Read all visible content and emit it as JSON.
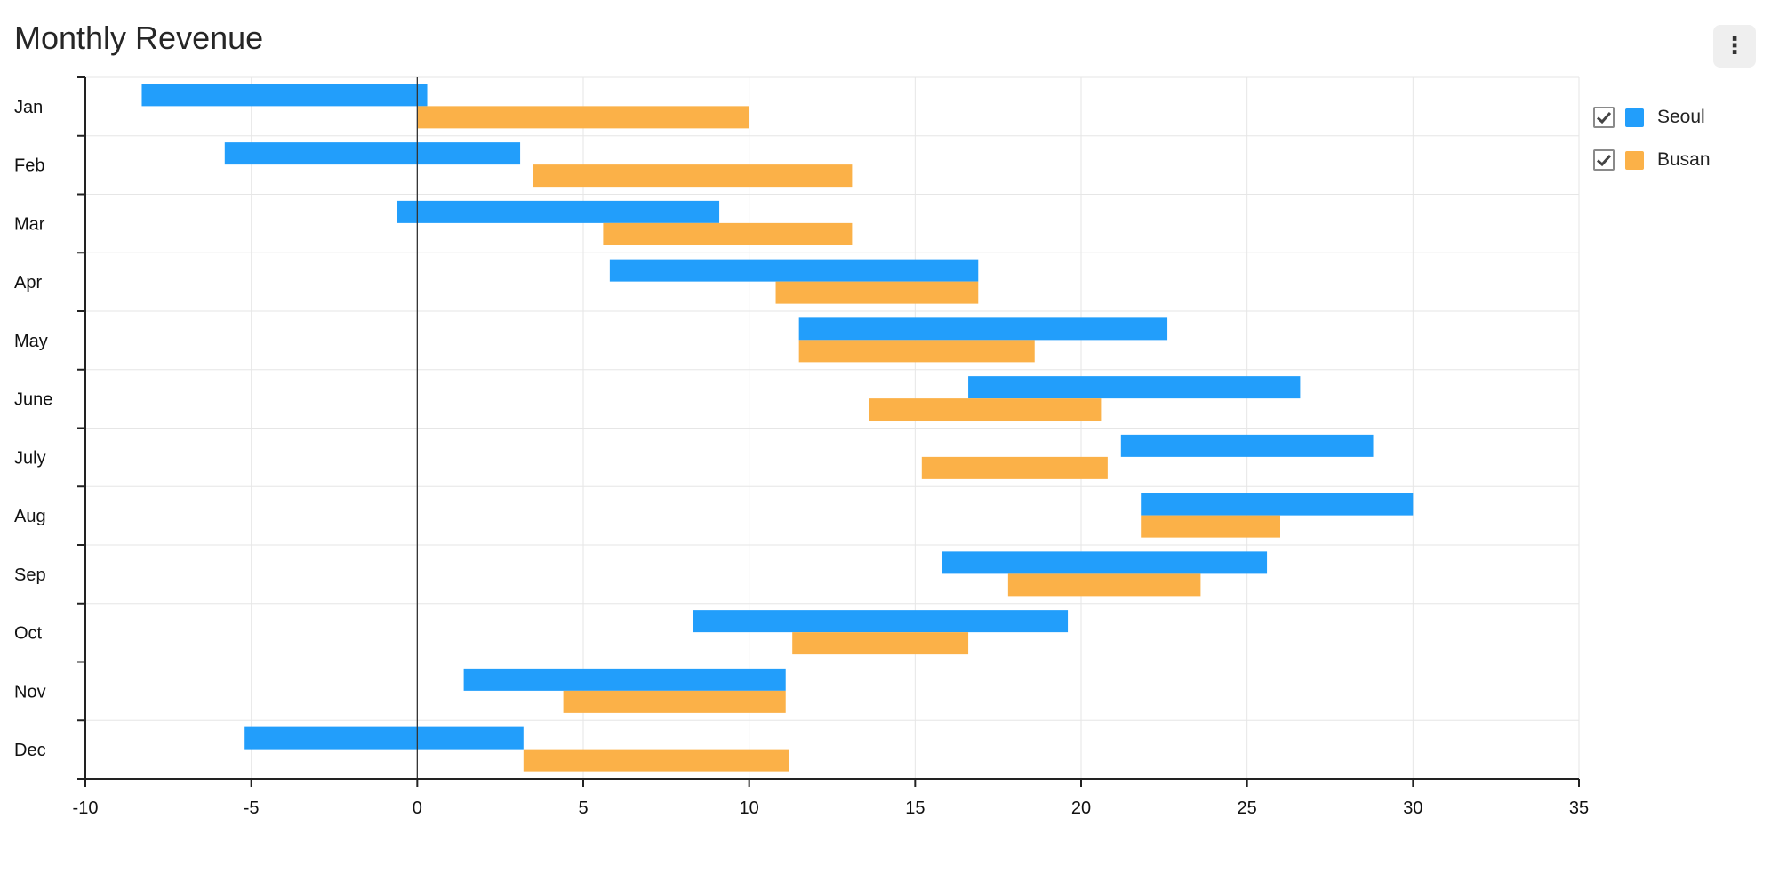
{
  "chart_data": {
    "type": "bar",
    "orientation": "horizontal",
    "floating": true,
    "title": "Monthly Revenue",
    "categories": [
      "Jan",
      "Feb",
      "Mar",
      "Apr",
      "May",
      "June",
      "July",
      "Aug",
      "Sep",
      "Oct",
      "Nov",
      "Dec"
    ],
    "series": [
      {
        "name": "Seoul",
        "color": "#229efb",
        "ranges": [
          [
            -8.3,
            0.3
          ],
          [
            -5.8,
            3.1
          ],
          [
            -0.6,
            9.1
          ],
          [
            5.8,
            16.9
          ],
          [
            11.5,
            22.6
          ],
          [
            16.6,
            26.6
          ],
          [
            21.2,
            28.8
          ],
          [
            21.8,
            30.0
          ],
          [
            15.8,
            25.6
          ],
          [
            8.3,
            19.6
          ],
          [
            1.4,
            11.1
          ],
          [
            -5.2,
            3.2
          ]
        ]
      },
      {
        "name": "Busan",
        "color": "#fbb148",
        "ranges": [
          [
            0.0,
            10.0
          ],
          [
            3.5,
            13.1
          ],
          [
            5.6,
            13.1
          ],
          [
            10.8,
            16.9
          ],
          [
            11.5,
            18.6
          ],
          [
            13.6,
            20.6
          ],
          [
            15.2,
            20.8
          ],
          [
            21.8,
            26.0
          ],
          [
            17.8,
            23.6
          ],
          [
            11.3,
            16.6
          ],
          [
            4.4,
            11.1
          ],
          [
            3.2,
            11.2
          ]
        ]
      }
    ],
    "xlim": [
      -10,
      35
    ],
    "xticks": [
      "-10",
      "-5",
      "0",
      "5",
      "10",
      "15",
      "20",
      "25",
      "30",
      "35"
    ],
    "grid": true,
    "legend_position": "right"
  },
  "menu": {
    "icon": "more-vert-icon",
    "glyph": "⋮"
  }
}
